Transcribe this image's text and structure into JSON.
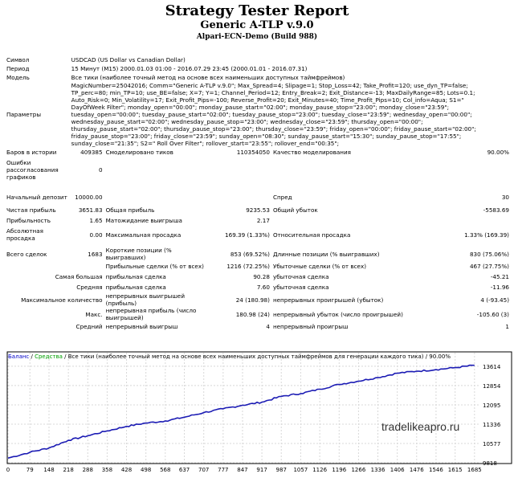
{
  "header": {
    "title": "Strategy Tester Report",
    "ea_name": "Generic A-TLP v.9.0",
    "server": "Alpari-ECN-Demo (Build 988)"
  },
  "rows": {
    "symbol_label": "Символ",
    "symbol_value": "USDCAD (US Dollar vs Canadian Dollar)",
    "period_label": "Период",
    "period_value": "15 Минут (M15) 2000.01.03 01:00 - 2016.07.29 23:45 (2000.01.01 - 2016.07.31)",
    "model_label": "Модель",
    "model_value": "Все тики (наиболее точный метод на основе всех наименьших доступных таймфреймов)",
    "params_label": "Параметры",
    "params_lines": [
      "MagicNumber=25042016; Comm=\"Generic A-TLP v.9.0\"; Max_Spread=4; Slipage=1; Stop_Loss=42; Take_Profit=120; use_dyn_TP=false;",
      "TP_perc=80; min_TP=10; use_BE=false; X=7; Y=1; Channel_Period=12; Entry_Break=2; Exit_Distance=-13; MaxDailyRange=85; Lots=0.1;",
      "Auto_Risk=0; Min_Volatility=17; Exit_Profit_Pips=-100; Reverse_Profit=20; Exit_Minutes=40; Time_Profit_Pips=10; Col_info=Aqua; S1=\"",
      "DayOfWeek Filter\"; monday_open=\"00:00\"; monday_pause_start=\"02:00\"; monday_pause_stop=\"23:00\"; monday_close=\"23:59\";",
      "tuesday_open=\"00:00\"; tuesday_pause_start=\"02:00\"; tuesday_pause_stop=\"23:00\"; tuesday_close=\"23:59\"; wednesday_open=\"00:00\";",
      "wednesday_pause_start=\"02:00\"; wednesday_pause_stop=\"23:00\"; wednesday_close=\"23:59\"; thursday_open=\"00:00\";",
      "thursday_pause_start=\"02:00\"; thursday_pause_stop=\"23:00\"; thursday_close=\"23:59\"; friday_open=\"00:00\"; friday_pause_start=\"02:00\";",
      "friday_pause_stop=\"23:00\"; friday_close=\"23:59\"; sunday_open=\"08:30\"; sunday_pause_start=\"15:30\"; sunday_pause_stop=\"17:55\";",
      "sunday_close=\"21:35\"; S2=\" Roll Over Filter\"; rollover_start=\"23:55\"; rollover_end=\"00:35\";"
    ],
    "bars_label": "Баров в истории",
    "bars_value": "409385",
    "ticks_label": "Смоделировано тиков",
    "ticks_value": "110354050",
    "quality_label": "Качество моделирования",
    "quality_value": "90.00%",
    "errors_label": "Ошибки рассогласования графиков",
    "errors_value": "0",
    "deposit_label": "Начальный депозит",
    "deposit_value": "10000.00",
    "spread_label": "Спред",
    "spread_value": "30",
    "net_label": "Чистая прибыль",
    "net_value": "3651.83",
    "gross_profit_label": "Общая прибыль",
    "gross_profit_value": "9235.53",
    "gross_loss_label": "Общий убыток",
    "gross_loss_value": "-5583.69",
    "pf_label": "Прибыльность",
    "pf_value": "1.65",
    "expected_label": "Матожидание выигрыша",
    "expected_value": "2.17",
    "abs_dd_label": "Абсолютная просадка",
    "abs_dd_value": "0.00",
    "max_dd_label": "Максимальная просадка",
    "max_dd_value": "169.39 (1.33%)",
    "rel_dd_label": "Относительная просадка",
    "rel_dd_value": "1.33% (169.39)",
    "total_label": "Всего сделок",
    "total_value": "1683",
    "short_label": "Короткие позиции (% выигравших)",
    "short_value": "853 (69.52%)",
    "long_label": "Длинные позиции (% выигравших)",
    "long_value": "830 (75.06%)",
    "profit_trades_label": "Прибыльные сделки (% от всех)",
    "profit_trades_value": "1216 (72.25%)",
    "loss_trades_label": "Убыточные сделки (% от всех)",
    "loss_trades_value": "467 (27.75%)",
    "largest_label": "Самая большая",
    "largest_profit_label": "прибыльная сделка",
    "largest_profit_value": "90.28",
    "largest_loss_label": "убыточная сделка",
    "largest_loss_value": "-45.21",
    "average_label": "Средняя",
    "avg_profit_label": "прибыльная сделка",
    "avg_profit_value": "7.60",
    "avg_loss_label": "убыточная сделка",
    "avg_loss_value": "-11.96",
    "max_count_label": "Максимальное количество",
    "max_cons_wins_label": "непрерывных выигрышей (прибыль)",
    "max_cons_wins_value": "24 (180.98)",
    "max_cons_losses_label": "непрерывных проигрышей (убыток)",
    "max_cons_losses_value": "4 (-93.45)",
    "max_label": "Макс.",
    "max_cons_profit_label": "непрерывная прибыль (число выигрышей)",
    "max_cons_profit_value": "180.98 (24)",
    "max_cons_loss_label": "непрерывный убыток (число проигрышей)",
    "max_cons_loss_value": "-105.60 (3)",
    "avg2_label": "Средний",
    "avg_cons_wins_label": "непрерывный выигрыш",
    "avg_cons_wins_value": "4",
    "avg_cons_losses_label": "непрерывный проигрыш",
    "avg_cons_losses_value": "1"
  },
  "chart_legend": {
    "balance": "Баланс",
    "sep1": " / ",
    "equity": "Средства",
    "rest": " / Все тики (наиболее точный метод на основе всех наименьших доступных таймфреймов для генерации каждого тика) / 90.00%"
  },
  "watermark": "tradelikeapro.ru",
  "colors": {
    "balance_line": "#1c1cb4",
    "grid": "#d8d8d8",
    "legend_blue": "#0000c8",
    "legend_green": "#00a000"
  },
  "chart_data": {
    "type": "line",
    "series": [
      {
        "name": "Баланс",
        "x": [
          0,
          79,
          148,
          218,
          288,
          358,
          428,
          498,
          568,
          637,
          707,
          777,
          847,
          917,
          987,
          1057,
          1126,
          1196,
          1266,
          1336,
          1406,
          1476,
          1546,
          1615,
          1685
        ],
        "values": [
          10000,
          10230,
          10400,
          10700,
          10880,
          11070,
          11250,
          11380,
          11460,
          11610,
          11790,
          11940,
          12080,
          12200,
          12430,
          12540,
          12710,
          12900,
          13030,
          13170,
          13340,
          13420,
          13480,
          13560,
          13652
        ]
      }
    ],
    "x_ticks": [
      "0",
      "79",
      "148",
      "218",
      "288",
      "358",
      "428",
      "498",
      "568",
      "637",
      "707",
      "777",
      "847",
      "917",
      "987",
      "1057",
      "1126",
      "1196",
      "1266",
      "1336",
      "1406",
      "1476",
      "1546",
      "1615",
      "1685"
    ],
    "y_ticks": [
      "13614",
      "12854",
      "12095",
      "11336",
      "10577",
      "9818"
    ],
    "ylim": [
      9818,
      13800
    ],
    "xlim": [
      0,
      1700
    ],
    "grid": true
  }
}
